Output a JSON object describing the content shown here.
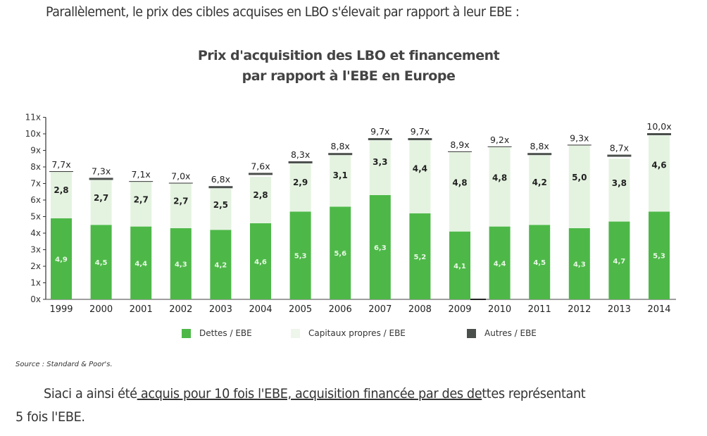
{
  "document": {
    "intro_text": "Parallèlement, le prix des cibles acquises en LBO s'élevait par rapport à leur EBE :",
    "source": "Source : Standard & Poor's.",
    "body_line1_pre": "Siaci a ainsi été",
    "body_line1_underlined": " acquis pour 10 fois l'EBE, acquisition financée par des de",
    "body_line1_post": "ttes représentant",
    "body_line2": "5 fois l'EBE."
  },
  "chart_data": {
    "type": "bar",
    "stacked": true,
    "title": "Prix d'acquisition des LBO et financement",
    "subtitle": "par rapport à l'EBE en Europe",
    "xlabel": "",
    "ylabel": "",
    "ylim": [
      0,
      11
    ],
    "yticks": [
      "0x",
      "1x",
      "2x",
      "3x",
      "4x",
      "5x",
      "6x",
      "7x",
      "8x",
      "9x",
      "10x",
      "11x"
    ],
    "grid": false,
    "legend_position": "bottom",
    "categories": [
      "1999",
      "2000",
      "2001",
      "2002",
      "2003",
      "2004",
      "2005",
      "2006",
      "2007",
      "2008",
      "2009",
      "2010",
      "2011",
      "2012",
      "2013",
      "2014"
    ],
    "series": [
      {
        "name": "Dettes / EBE",
        "color": "#4db848",
        "values": [
          4.9,
          4.5,
          4.4,
          4.3,
          4.2,
          4.6,
          5.3,
          5.6,
          6.3,
          5.2,
          4.1,
          4.4,
          4.5,
          4.3,
          4.7,
          5.3
        ],
        "labels": [
          "4,9",
          "4,5",
          "4,4",
          "4,3",
          "4,2",
          "4,6",
          "5,3",
          "5,6",
          "6,3",
          "5,2",
          "4,1",
          "4,4",
          "4,5",
          "4,3",
          "4,7",
          "5,3"
        ]
      },
      {
        "name": "Capitaux propres / EBE",
        "color": "#e4f3e0",
        "values": [
          2.8,
          2.7,
          2.7,
          2.7,
          2.5,
          2.8,
          2.9,
          3.1,
          3.3,
          4.4,
          4.8,
          4.8,
          4.2,
          5.0,
          3.8,
          4.6
        ],
        "labels": [
          "2,8",
          "2,7",
          "2,7",
          "2,7",
          "2,5",
          "2,8",
          "2,9",
          "3,1",
          "3,3",
          "4,4",
          "4,8",
          "4,8",
          "4,2",
          "5,0",
          "3,8",
          "4,6"
        ]
      },
      {
        "name": "Autres / EBE",
        "color": "#4a4f4c",
        "values": [
          0.0,
          0.1,
          0.0,
          0.0,
          0.1,
          0.2,
          0.1,
          0.1,
          0.1,
          0.1,
          0.0,
          0.0,
          0.1,
          0.0,
          0.2,
          0.1
        ]
      }
    ],
    "totals": [
      7.7,
      7.3,
      7.1,
      7.0,
      6.8,
      7.6,
      8.3,
      8.8,
      9.7,
      9.7,
      8.9,
      9.2,
      8.8,
      9.3,
      8.7,
      10.0
    ],
    "total_labels": [
      "7,7x",
      "7,3x",
      "7,1x",
      "7,0x",
      "6,8x",
      "7,6x",
      "8,3x",
      "8,8x",
      "9,7x",
      "9,7x",
      "8,9x",
      "9,2x",
      "8,8x",
      "9,3x",
      "8,7x",
      "10,0x"
    ]
  }
}
